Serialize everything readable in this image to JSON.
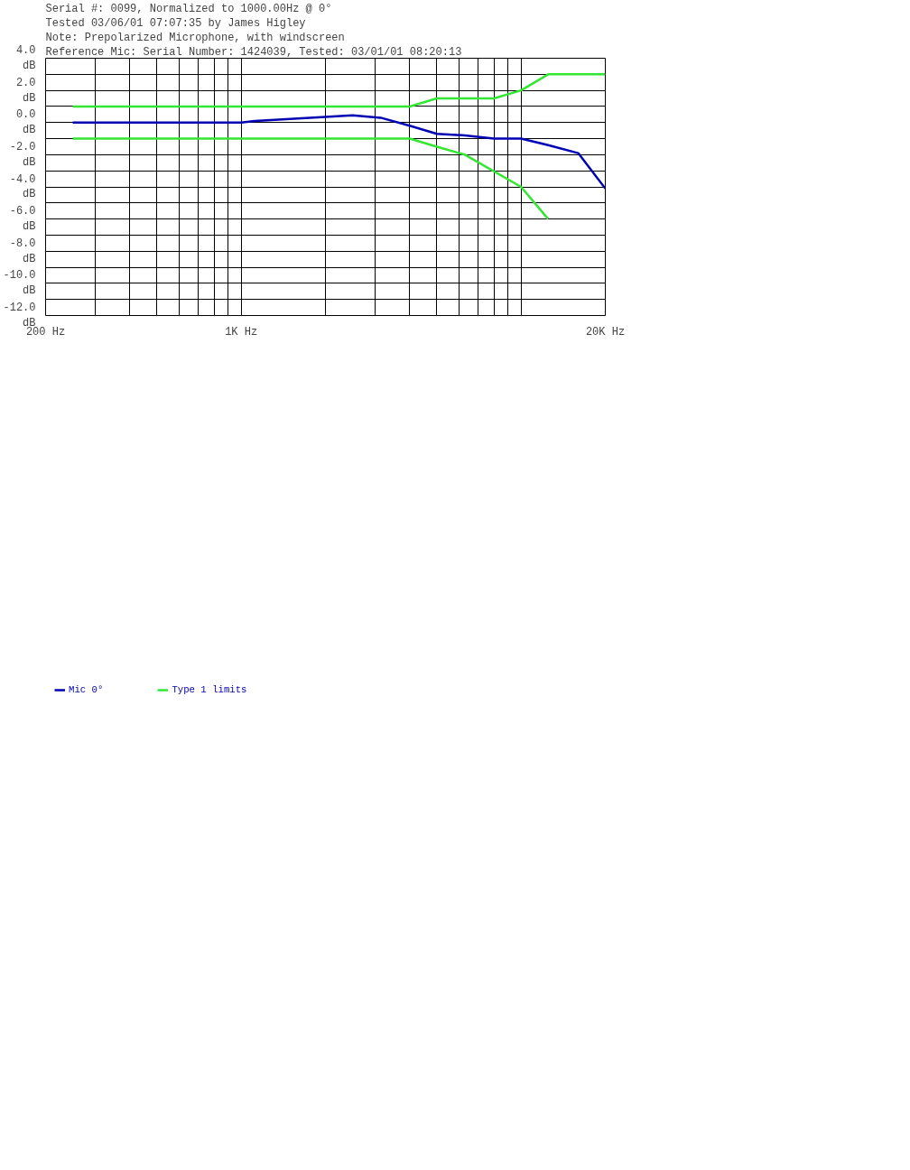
{
  "chart_data": {
    "type": "line",
    "title": "Serial #: 0099, Normalized to 1000.00Hz @ 0°",
    "annotations": [
      "Tested 03/06/01 07:07:35 by James Higley",
      "Note: Prepolarized Microphone, with windscreen",
      "Reference Mic: Serial Number: 1424039, Tested: 03/01/01 08:20:13"
    ],
    "log": "x",
    "xlim": [
      200,
      20000
    ],
    "xticks": [
      {
        "value": 200,
        "label": "200 Hz"
      },
      {
        "value": 300,
        "label": null
      },
      {
        "value": 400,
        "label": null
      },
      {
        "value": 500,
        "label": null
      },
      {
        "value": 600,
        "label": null
      },
      {
        "value": 700,
        "label": null
      },
      {
        "value": 800,
        "label": null
      },
      {
        "value": 900,
        "label": null
      },
      {
        "value": 1000,
        "label": "1K Hz"
      },
      {
        "value": 2000,
        "label": null
      },
      {
        "value": 3000,
        "label": null
      },
      {
        "value": 4000,
        "label": null
      },
      {
        "value": 5000,
        "label": null
      },
      {
        "value": 6000,
        "label": null
      },
      {
        "value": 7000,
        "label": null
      },
      {
        "value": 8000,
        "label": null
      },
      {
        "value": 9000,
        "label": null
      },
      {
        "value": 10000,
        "label": null
      },
      {
        "value": 20000,
        "label": "20K Hz"
      }
    ],
    "ylim": [
      -12,
      4
    ],
    "yticks": [
      {
        "value": 4,
        "label": "4.0\ndB"
      },
      {
        "value": 3,
        "label": null
      },
      {
        "value": 2,
        "label": "2.0\ndB"
      },
      {
        "value": 1,
        "label": null
      },
      {
        "value": 0,
        "label": "0.0\ndB"
      },
      {
        "value": -1,
        "label": null
      },
      {
        "value": -2,
        "label": "-2.0\ndB"
      },
      {
        "value": -3,
        "label": null
      },
      {
        "value": -4,
        "label": "-4.0\ndB"
      },
      {
        "value": -5,
        "label": null
      },
      {
        "value": -6,
        "label": "-6.0\ndB"
      },
      {
        "value": -7,
        "label": null
      },
      {
        "value": -8,
        "label": "-8.0\ndB"
      },
      {
        "value": -9,
        "label": null
      },
      {
        "value": -10,
        "label": "-10.0\ndB"
      },
      {
        "value": -11,
        "label": null
      },
      {
        "value": -12,
        "label": "-12.0\ndB"
      }
    ],
    "grid": true,
    "legend": "bottom left",
    "line_style": "solid",
    "marker": "none",
    "series": [
      {
        "name": "Mic 0°",
        "color": "#0000b4",
        "x": [
          250,
          1000,
          1120,
          2000,
          2500,
          3150,
          4000,
          5000,
          6300,
          8000,
          10000,
          12500,
          16000,
          20000
        ],
        "values": [
          0,
          0,
          0.1,
          0.35,
          0.45,
          0.3,
          -0.2,
          -0.7,
          -0.8,
          -1.0,
          -1.0,
          -1.4,
          -1.9,
          -4.1
        ]
      },
      {
        "name": "Type 1 limits",
        "color": "#33e633",
        "x": [
          250,
          4000,
          5000,
          8000,
          10000,
          12500,
          20000
        ],
        "values": [
          1,
          1,
          1.5,
          1.5,
          2,
          3,
          3
        ]
      },
      {
        "color": "#33e633",
        "x": [
          250,
          4000,
          5000,
          6300,
          10000,
          12500
        ],
        "values": [
          -1,
          -1,
          -1.5,
          -2,
          -4,
          -6
        ]
      }
    ]
  }
}
